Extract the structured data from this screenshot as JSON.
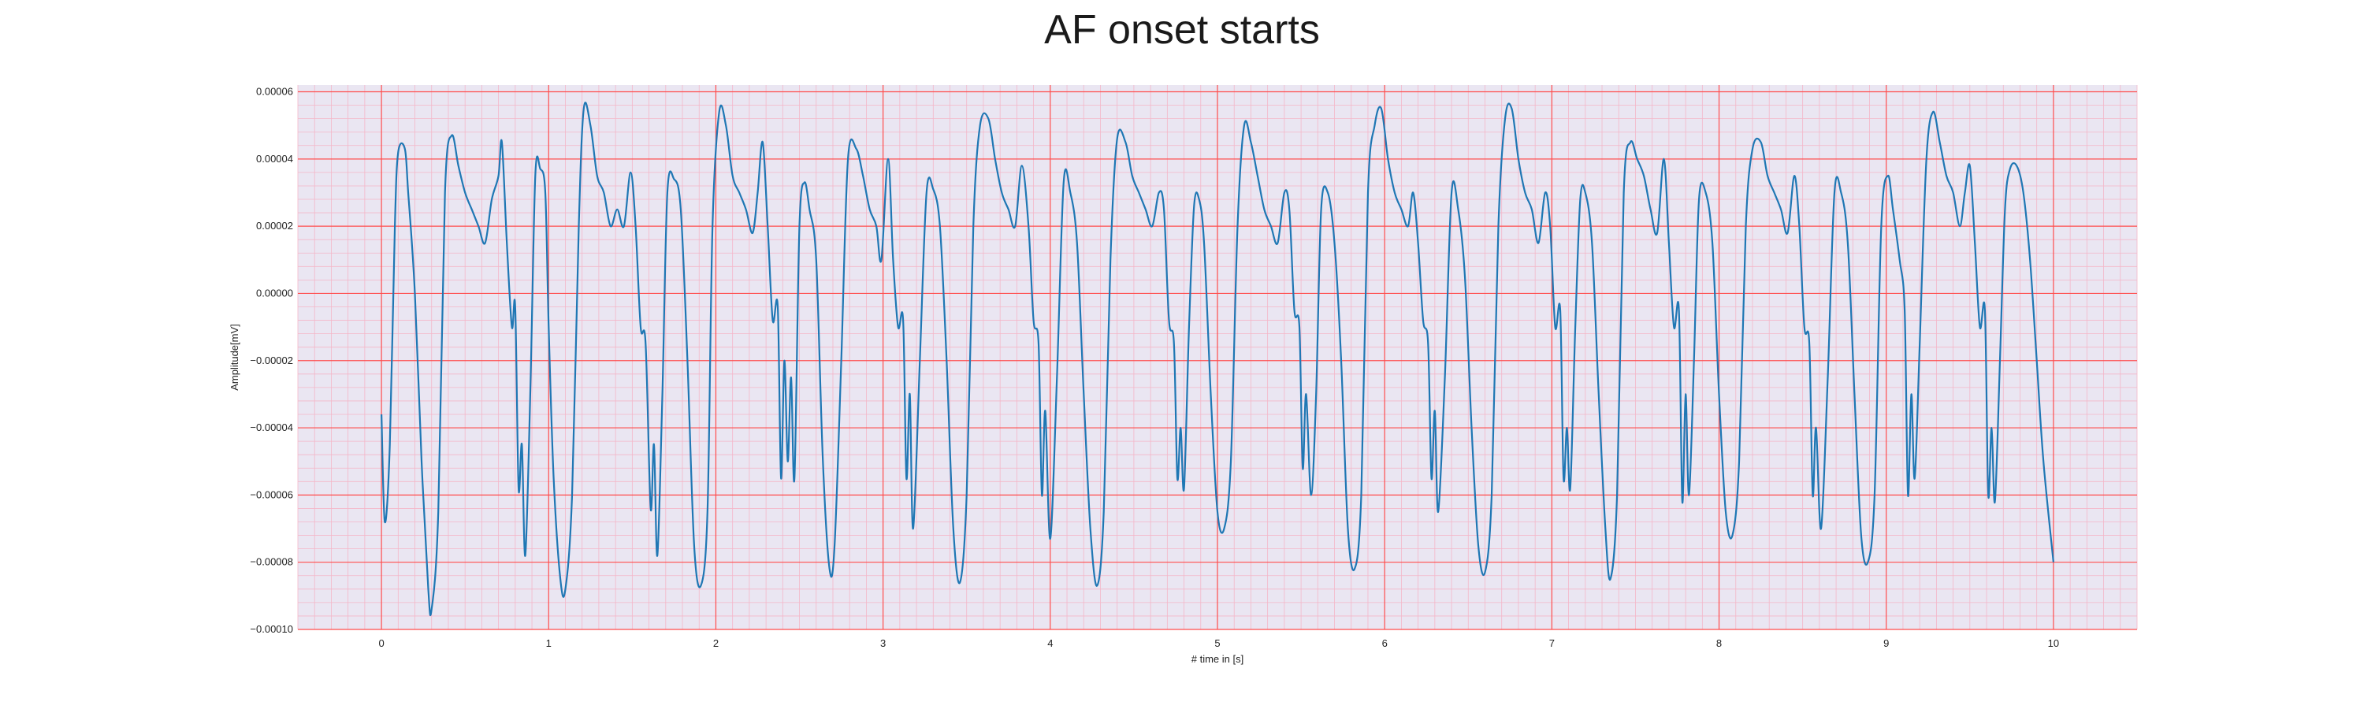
{
  "chart_data": {
    "type": "line",
    "title": "AF onset starts",
    "xlabel": "# time in [s]",
    "ylabel": "Amplitude[mV]",
    "xlim": [
      -0.5,
      10.5
    ],
    "ylim": [
      -0.0001,
      6.2e-05
    ],
    "xticks": [
      0,
      1,
      2,
      3,
      4,
      5,
      6,
      7,
      8,
      9,
      10
    ],
    "xtick_labels": [
      "0",
      "1",
      "2",
      "3",
      "4",
      "5",
      "6",
      "7",
      "8",
      "9",
      "10"
    ],
    "yticks": [
      -0.0001,
      -8e-05,
      -6e-05,
      -4e-05,
      -2e-05,
      0.0,
      2e-05,
      4e-05,
      6e-05
    ],
    "ytick_labels": [
      "−0.00010",
      "−0.00008",
      "−0.00006",
      "−0.00004",
      "−0.00002",
      "0.00000",
      "0.00002",
      "0.00004",
      "0.00006"
    ],
    "grid": true,
    "colors": {
      "line": "#1f77b4",
      "major_grid": "#ff4d4d",
      "minor_grid": "#f4b6c8",
      "plot_bg": "#eae6f2"
    },
    "series": [
      {
        "values": [
          [
            0.0,
            -3.6e-05
          ],
          [
            0.02,
            -6.8e-05
          ],
          [
            0.05,
            -4.5e-05
          ],
          [
            0.08,
            2e-05
          ],
          [
            0.1,
            4.2e-05
          ],
          [
            0.14,
            4.3e-05
          ],
          [
            0.16,
            3e-05
          ],
          [
            0.2,
            0.0
          ],
          [
            0.24,
            -5e-05
          ],
          [
            0.28,
            -8.8e-05
          ],
          [
            0.3,
            -9.4e-05
          ],
          [
            0.34,
            -6.5e-05
          ],
          [
            0.38,
            3e-05
          ],
          [
            0.42,
            4.7e-05
          ],
          [
            0.46,
            3.8e-05
          ],
          [
            0.5,
            3e-05
          ],
          [
            0.54,
            2.5e-05
          ],
          [
            0.58,
            2e-05
          ],
          [
            0.62,
            1.5e-05
          ],
          [
            0.66,
            2.8e-05
          ],
          [
            0.7,
            3.5e-05
          ],
          [
            0.72,
            4.5e-05
          ],
          [
            0.75,
            1.5e-05
          ],
          [
            0.78,
            -1e-05
          ],
          [
            0.8,
            -4e-06
          ],
          [
            0.82,
            -5.8e-05
          ],
          [
            0.84,
            -4.5e-05
          ],
          [
            0.86,
            -7.8e-05
          ],
          [
            0.89,
            -3e-05
          ],
          [
            0.92,
            3.5e-05
          ],
          [
            0.95,
            3.7e-05
          ],
          [
            0.98,
            3e-05
          ],
          [
            1.0,
            -1e-05
          ],
          [
            1.03,
            -5.5e-05
          ],
          [
            1.07,
            -8.5e-05
          ],
          [
            1.1,
            -8.8e-05
          ],
          [
            1.14,
            -6e-05
          ],
          [
            1.18,
            2e-05
          ],
          [
            1.21,
            5.5e-05
          ],
          [
            1.25,
            5e-05
          ],
          [
            1.29,
            3.5e-05
          ],
          [
            1.33,
            3e-05
          ],
          [
            1.37,
            2e-05
          ],
          [
            1.41,
            2.5e-05
          ],
          [
            1.45,
            2e-05
          ],
          [
            1.49,
            3.6e-05
          ],
          [
            1.52,
            2e-05
          ],
          [
            1.55,
            -1e-05
          ],
          [
            1.58,
            -1.5e-05
          ],
          [
            1.61,
            -6.4e-05
          ],
          [
            1.63,
            -4.5e-05
          ],
          [
            1.65,
            -7.8e-05
          ],
          [
            1.68,
            -3e-05
          ],
          [
            1.71,
            3e-05
          ],
          [
            1.75,
            3.4e-05
          ],
          [
            1.79,
            2.5e-05
          ],
          [
            1.83,
            -2e-05
          ],
          [
            1.87,
            -7.5e-05
          ],
          [
            1.91,
            -8.7e-05
          ],
          [
            1.95,
            -6.5e-05
          ],
          [
            1.98,
            2e-05
          ],
          [
            2.02,
            5.4e-05
          ],
          [
            2.06,
            5e-05
          ],
          [
            2.1,
            3.5e-05
          ],
          [
            2.14,
            3e-05
          ],
          [
            2.18,
            2.5e-05
          ],
          [
            2.22,
            1.8e-05
          ],
          [
            2.25,
            3e-05
          ],
          [
            2.28,
            4.5e-05
          ],
          [
            2.31,
            2e-05
          ],
          [
            2.34,
            -8e-06
          ],
          [
            2.37,
            -4e-06
          ],
          [
            2.39,
            -5.5e-05
          ],
          [
            2.41,
            -2e-05
          ],
          [
            2.43,
            -5e-05
          ],
          [
            2.45,
            -2.5e-05
          ],
          [
            2.47,
            -5.5e-05
          ],
          [
            2.5,
            2e-05
          ],
          [
            2.53,
            3.3e-05
          ],
          [
            2.56,
            2.5e-05
          ],
          [
            2.6,
            1e-05
          ],
          [
            2.64,
            -5e-05
          ],
          [
            2.68,
            -8.2e-05
          ],
          [
            2.71,
            -7.5e-05
          ],
          [
            2.75,
            -2e-05
          ],
          [
            2.79,
            4e-05
          ],
          [
            2.84,
            4.3e-05
          ],
          [
            2.88,
            3.5e-05
          ],
          [
            2.92,
            2.5e-05
          ],
          [
            2.96,
            2e-05
          ],
          [
            2.99,
            1e-05
          ],
          [
            3.03,
            4e-05
          ],
          [
            3.06,
            1e-05
          ],
          [
            3.09,
            -1e-05
          ],
          [
            3.12,
            -8e-06
          ],
          [
            3.14,
            -5.5e-05
          ],
          [
            3.16,
            -3e-05
          ],
          [
            3.18,
            -7e-05
          ],
          [
            3.22,
            -2e-05
          ],
          [
            3.26,
            3e-05
          ],
          [
            3.3,
            3.1e-05
          ],
          [
            3.34,
            2e-05
          ],
          [
            3.38,
            -2e-05
          ],
          [
            3.42,
            -7e-05
          ],
          [
            3.46,
            -8.6e-05
          ],
          [
            3.5,
            -6e-05
          ],
          [
            3.54,
            2e-05
          ],
          [
            3.58,
            5e-05
          ],
          [
            3.63,
            5.2e-05
          ],
          [
            3.67,
            4e-05
          ],
          [
            3.71,
            3e-05
          ],
          [
            3.75,
            2.5e-05
          ],
          [
            3.79,
            2e-05
          ],
          [
            3.83,
            3.8e-05
          ],
          [
            3.87,
            2e-05
          ],
          [
            3.9,
            -8e-06
          ],
          [
            3.93,
            -1.5e-05
          ],
          [
            3.95,
            -6e-05
          ],
          [
            3.97,
            -3.5e-05
          ],
          [
            4.0,
            -7.3e-05
          ],
          [
            4.04,
            -2.5e-05
          ],
          [
            4.08,
            3.3e-05
          ],
          [
            4.12,
            3e-05
          ],
          [
            4.16,
            1.5e-05
          ],
          [
            4.2,
            -3e-05
          ],
          [
            4.24,
            -7e-05
          ],
          [
            4.28,
            -8.7e-05
          ],
          [
            4.32,
            -6.5e-05
          ],
          [
            4.36,
            1e-05
          ],
          [
            4.4,
            4.6e-05
          ],
          [
            4.45,
            4.5e-05
          ],
          [
            4.49,
            3.5e-05
          ],
          [
            4.53,
            3e-05
          ],
          [
            4.57,
            2.5e-05
          ],
          [
            4.61,
            2e-05
          ],
          [
            4.65,
            3e-05
          ],
          [
            4.68,
            2.5e-05
          ],
          [
            4.71,
            -8e-06
          ],
          [
            4.74,
            -1.5e-05
          ],
          [
            4.76,
            -5.5e-05
          ],
          [
            4.78,
            -4e-05
          ],
          [
            4.8,
            -5.8e-05
          ],
          [
            4.83,
            -1e-05
          ],
          [
            4.86,
            2.6e-05
          ],
          [
            4.89,
            2.8e-05
          ],
          [
            4.92,
            1.5e-05
          ],
          [
            4.96,
            -3e-05
          ],
          [
            5.0,
            -6.5e-05
          ],
          [
            5.04,
            -7e-05
          ],
          [
            5.08,
            -5e-05
          ],
          [
            5.12,
            2e-05
          ],
          [
            5.16,
            5e-05
          ],
          [
            5.2,
            4.5e-05
          ],
          [
            5.24,
            3.5e-05
          ],
          [
            5.28,
            2.5e-05
          ],
          [
            5.32,
            2e-05
          ],
          [
            5.36,
            1.5e-05
          ],
          [
            5.4,
            3e-05
          ],
          [
            5.43,
            2.5e-05
          ],
          [
            5.46,
            -5e-06
          ],
          [
            5.49,
            -1e-05
          ],
          [
            5.51,
            -5.2e-05
          ],
          [
            5.53,
            -3e-05
          ],
          [
            5.56,
            -6e-05
          ],
          [
            5.59,
            -3e-05
          ],
          [
            5.62,
            2.5e-05
          ],
          [
            5.66,
            3e-05
          ],
          [
            5.7,
            1.5e-05
          ],
          [
            5.74,
            -2e-05
          ],
          [
            5.78,
            -7e-05
          ],
          [
            5.82,
            -8.2e-05
          ],
          [
            5.86,
            -6e-05
          ],
          [
            5.9,
            3e-05
          ],
          [
            5.94,
            5e-05
          ],
          [
            5.98,
            5.5e-05
          ],
          [
            6.02,
            4e-05
          ],
          [
            6.06,
            3e-05
          ],
          [
            6.1,
            2.5e-05
          ],
          [
            6.14,
            2e-05
          ],
          [
            6.17,
            3e-05
          ],
          [
            6.2,
            1.5e-05
          ],
          [
            6.23,
            -8e-06
          ],
          [
            6.26,
            -1.5e-05
          ],
          [
            6.28,
            -5.5e-05
          ],
          [
            6.3,
            -3.5e-05
          ],
          [
            6.32,
            -6.5e-05
          ],
          [
            6.36,
            -2.5e-05
          ],
          [
            6.4,
            3e-05
          ],
          [
            6.44,
            2.5e-05
          ],
          [
            6.48,
            5e-06
          ],
          [
            6.52,
            -4e-05
          ],
          [
            6.56,
            -7.5e-05
          ],
          [
            6.6,
            -8.3e-05
          ],
          [
            6.64,
            -6e-05
          ],
          [
            6.68,
            2e-05
          ],
          [
            6.72,
            5.2e-05
          ],
          [
            6.76,
            5.5e-05
          ],
          [
            6.8,
            4e-05
          ],
          [
            6.84,
            3e-05
          ],
          [
            6.88,
            2.5e-05
          ],
          [
            6.92,
            1.5e-05
          ],
          [
            6.96,
            3e-05
          ],
          [
            6.99,
            2e-05
          ],
          [
            7.02,
            -1e-05
          ],
          [
            7.05,
            -5e-06
          ],
          [
            7.07,
            -5.5e-05
          ],
          [
            7.09,
            -4e-05
          ],
          [
            7.11,
            -5.8e-05
          ],
          [
            7.14,
            -1e-05
          ],
          [
            7.17,
            2.8e-05
          ],
          [
            7.2,
            3e-05
          ],
          [
            7.24,
            1.5e-05
          ],
          [
            7.28,
            -3e-05
          ],
          [
            7.32,
            -7e-05
          ],
          [
            7.35,
            -8.5e-05
          ],
          [
            7.39,
            -6e-05
          ],
          [
            7.43,
            3e-05
          ],
          [
            7.47,
            4.5e-05
          ],
          [
            7.51,
            4e-05
          ],
          [
            7.55,
            3.5e-05
          ],
          [
            7.59,
            2.5e-05
          ],
          [
            7.63,
            1.8e-05
          ],
          [
            7.67,
            4e-05
          ],
          [
            7.7,
            1.5e-05
          ],
          [
            7.73,
            -1e-05
          ],
          [
            7.76,
            -5e-06
          ],
          [
            7.78,
            -6.2e-05
          ],
          [
            7.8,
            -3e-05
          ],
          [
            7.82,
            -6e-05
          ],
          [
            7.85,
            -2e-05
          ],
          [
            7.88,
            2.8e-05
          ],
          [
            7.92,
            3e-05
          ],
          [
            7.96,
            1.5e-05
          ],
          [
            8.0,
            -3e-05
          ],
          [
            8.04,
            -6.5e-05
          ],
          [
            8.08,
            -7.2e-05
          ],
          [
            8.12,
            -5e-05
          ],
          [
            8.16,
            2e-05
          ],
          [
            8.2,
            4.3e-05
          ],
          [
            8.25,
            4.5e-05
          ],
          [
            8.29,
            3.5e-05
          ],
          [
            8.33,
            3e-05
          ],
          [
            8.37,
            2.5e-05
          ],
          [
            8.41,
            1.8e-05
          ],
          [
            8.45,
            3.5e-05
          ],
          [
            8.48,
            2e-05
          ],
          [
            8.51,
            -1e-05
          ],
          [
            8.54,
            -1.5e-05
          ],
          [
            8.56,
            -6e-05
          ],
          [
            8.58,
            -4e-05
          ],
          [
            8.61,
            -7e-05
          ],
          [
            8.65,
            -2.5e-05
          ],
          [
            8.69,
            3e-05
          ],
          [
            8.73,
            3e-05
          ],
          [
            8.77,
            1.5e-05
          ],
          [
            8.81,
            -3e-05
          ],
          [
            8.85,
            -7.2e-05
          ],
          [
            8.89,
            -8e-05
          ],
          [
            8.93,
            -6e-05
          ],
          [
            8.97,
            2e-05
          ],
          [
            9.01,
            3.5e-05
          ],
          [
            9.04,
            2.5e-05
          ],
          [
            9.08,
            1e-05
          ],
          [
            9.11,
            -5e-06
          ],
          [
            9.13,
            -6e-05
          ],
          [
            9.15,
            -3e-05
          ],
          [
            9.17,
            -5.5e-05
          ],
          [
            9.2,
            -1.5e-05
          ],
          [
            9.24,
            4e-05
          ],
          [
            9.28,
            5.4e-05
          ],
          [
            9.32,
            4.5e-05
          ],
          [
            9.36,
            3.5e-05
          ],
          [
            9.4,
            3e-05
          ],
          [
            9.44,
            2e-05
          ],
          [
            9.47,
            3e-05
          ],
          [
            9.5,
            3.8e-05
          ],
          [
            9.53,
            1.5e-05
          ],
          [
            9.56,
            -1e-05
          ],
          [
            9.59,
            -5e-06
          ],
          [
            9.61,
            -6e-05
          ],
          [
            9.63,
            -4e-05
          ],
          [
            9.65,
            -6.2e-05
          ],
          [
            9.68,
            -2e-05
          ],
          [
            9.71,
            2.5e-05
          ],
          [
            9.74,
            3.7e-05
          ],
          [
            9.78,
            3.8e-05
          ],
          [
            9.82,
            3e-05
          ],
          [
            9.86,
            1e-05
          ],
          [
            9.9,
            -2e-05
          ],
          [
            9.94,
            -5e-05
          ],
          [
            10.0,
            -8e-05
          ]
        ]
      }
    ]
  }
}
